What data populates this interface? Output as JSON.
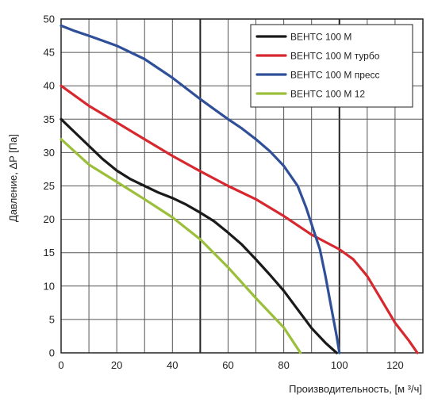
{
  "chart_data": {
    "type": "line",
    "title": "",
    "xlabel": "Производительность, [м ³/ч]",
    "ylabel": "Давление, ΔP [Па]",
    "xlim": [
      0,
      130
    ],
    "ylim": [
      0,
      50
    ],
    "x_ticks": [
      0,
      20,
      40,
      60,
      80,
      100,
      120
    ],
    "y_ticks": [
      0,
      5,
      10,
      15,
      20,
      25,
      30,
      35,
      40,
      45,
      50
    ],
    "grid": {
      "x_step": 10,
      "y_step": 5,
      "x_heavy_step": 50
    },
    "legend_position": "top-right",
    "series": [
      {
        "name": "ВЕНТС 100 М",
        "color": "#1a1a1a",
        "points": [
          [
            0,
            35
          ],
          [
            5,
            33
          ],
          [
            10,
            31
          ],
          [
            15,
            29
          ],
          [
            20,
            27.3
          ],
          [
            25,
            26
          ],
          [
            30,
            25
          ],
          [
            35,
            24
          ],
          [
            40,
            23.2
          ],
          [
            45,
            22.2
          ],
          [
            50,
            21
          ],
          [
            55,
            19.7
          ],
          [
            60,
            18
          ],
          [
            65,
            16.2
          ],
          [
            70,
            14
          ],
          [
            75,
            11.7
          ],
          [
            80,
            9.3
          ],
          [
            85,
            6.5
          ],
          [
            90,
            3.7
          ],
          [
            95,
            1.5
          ],
          [
            99,
            0
          ]
        ]
      },
      {
        "name": "ВЕНТС 100 М турбо",
        "color": "#d7282f",
        "points": [
          [
            0,
            40
          ],
          [
            10,
            37
          ],
          [
            20,
            34.5
          ],
          [
            30,
            32
          ],
          [
            40,
            29.5
          ],
          [
            50,
            27.2
          ],
          [
            60,
            25
          ],
          [
            70,
            23
          ],
          [
            80,
            20.5
          ],
          [
            90,
            17.7
          ],
          [
            100,
            15.5
          ],
          [
            105,
            14
          ],
          [
            110,
            11.5
          ],
          [
            115,
            8
          ],
          [
            120,
            4.5
          ],
          [
            125,
            1.8
          ],
          [
            128,
            0
          ]
        ]
      },
      {
        "name": "ВЕНТС 100 М пресс",
        "color": "#2f4f99",
        "points": [
          [
            0,
            49
          ],
          [
            5,
            48.2
          ],
          [
            10,
            47.5
          ],
          [
            20,
            46
          ],
          [
            30,
            44
          ],
          [
            40,
            41.2
          ],
          [
            50,
            38
          ],
          [
            55,
            36.5
          ],
          [
            60,
            35
          ],
          [
            65,
            33.6
          ],
          [
            70,
            32
          ],
          [
            75,
            30.2
          ],
          [
            80,
            28
          ],
          [
            85,
            25
          ],
          [
            88,
            21.8
          ],
          [
            91,
            18
          ],
          [
            93,
            15.5
          ],
          [
            95,
            11.5
          ],
          [
            97,
            7
          ],
          [
            99,
            2.5
          ],
          [
            100,
            0
          ]
        ]
      },
      {
        "name": "ВЕНТС 100 М 12",
        "color": "#9bbf3b",
        "points": [
          [
            0,
            32
          ],
          [
            10,
            28.2
          ],
          [
            20,
            25.6
          ],
          [
            30,
            23
          ],
          [
            40,
            20.3
          ],
          [
            50,
            17
          ],
          [
            60,
            12.8
          ],
          [
            70,
            8.2
          ],
          [
            80,
            3.8
          ],
          [
            86,
            0
          ]
        ]
      }
    ]
  }
}
